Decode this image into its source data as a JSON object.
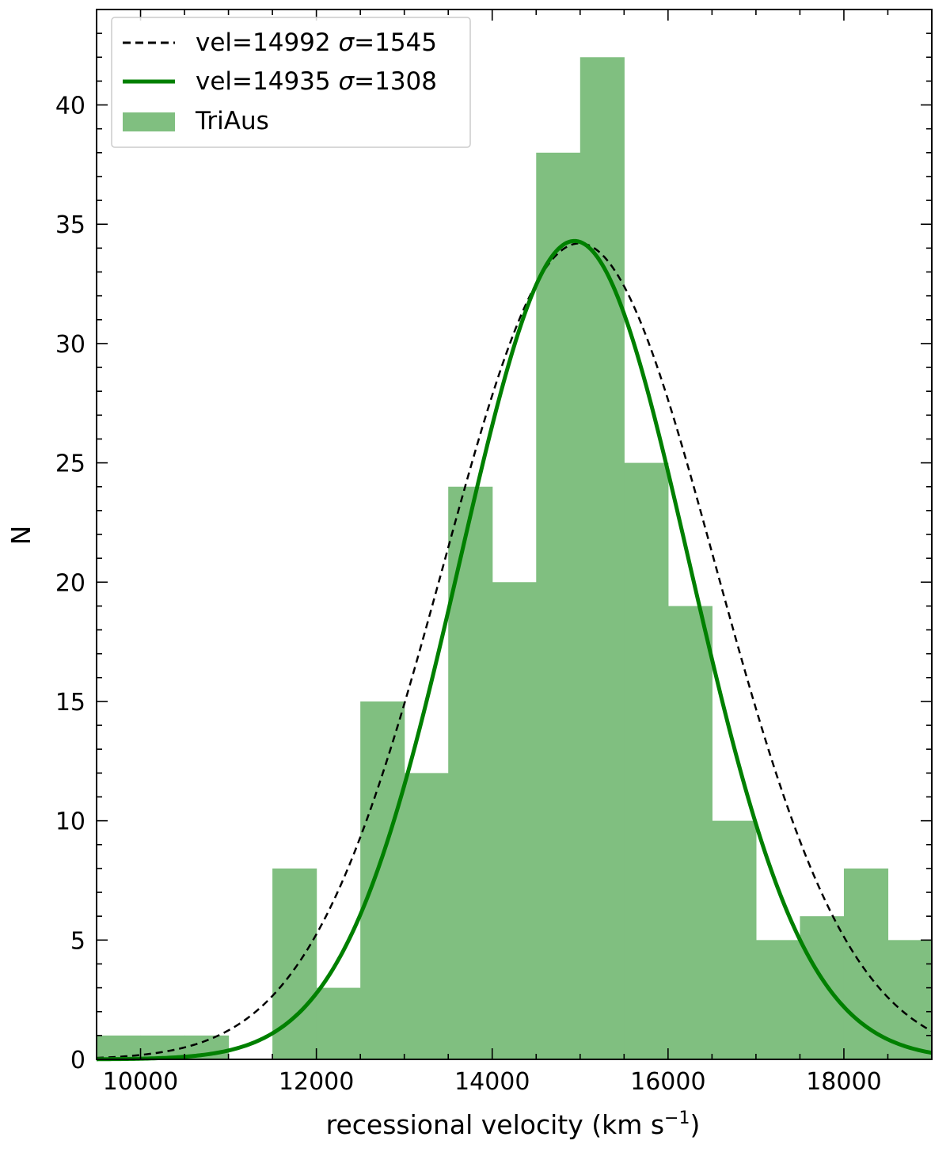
{
  "chart_data": {
    "type": "bar",
    "xlabel": "recessional velocity (km s",
    "xlabel_sup": "−1",
    "xlabel_close": ")",
    "ylabel": "N",
    "xlim": [
      9500,
      19000
    ],
    "ylim": [
      0,
      44
    ],
    "xticks": [
      10000,
      12000,
      14000,
      16000,
      18000
    ],
    "yticks": [
      0,
      5,
      10,
      15,
      20,
      25,
      30,
      35,
      40
    ],
    "histogram": {
      "name": "TriAus",
      "color": "#80bf80",
      "bin_edges": [
        9500,
        10000,
        10500,
        11000,
        11500,
        12000,
        12500,
        13000,
        13500,
        14000,
        14500,
        15000,
        15500,
        16000,
        16500,
        17000,
        17500,
        18000,
        18500,
        19000
      ],
      "counts": [
        1,
        1,
        1,
        0,
        8,
        3,
        15,
        12,
        24,
        20,
        38,
        42,
        25,
        19,
        10,
        5,
        6,
        8,
        5
      ]
    },
    "curves": [
      {
        "name_prefix": "vel=14992 ",
        "sigma_symbol": "σ",
        "name_suffix": "=1545",
        "mean": 14992,
        "sigma": 1545,
        "peak": 34.2,
        "style": "dashed",
        "color": "#000000"
      },
      {
        "name_prefix": "vel=14935 ",
        "sigma_symbol": "σ",
        "name_suffix": "=1308",
        "mean": 14935,
        "sigma": 1308,
        "peak": 34.3,
        "style": "solid",
        "color": "#008000"
      }
    ],
    "legend": {
      "position": "top-left"
    }
  }
}
